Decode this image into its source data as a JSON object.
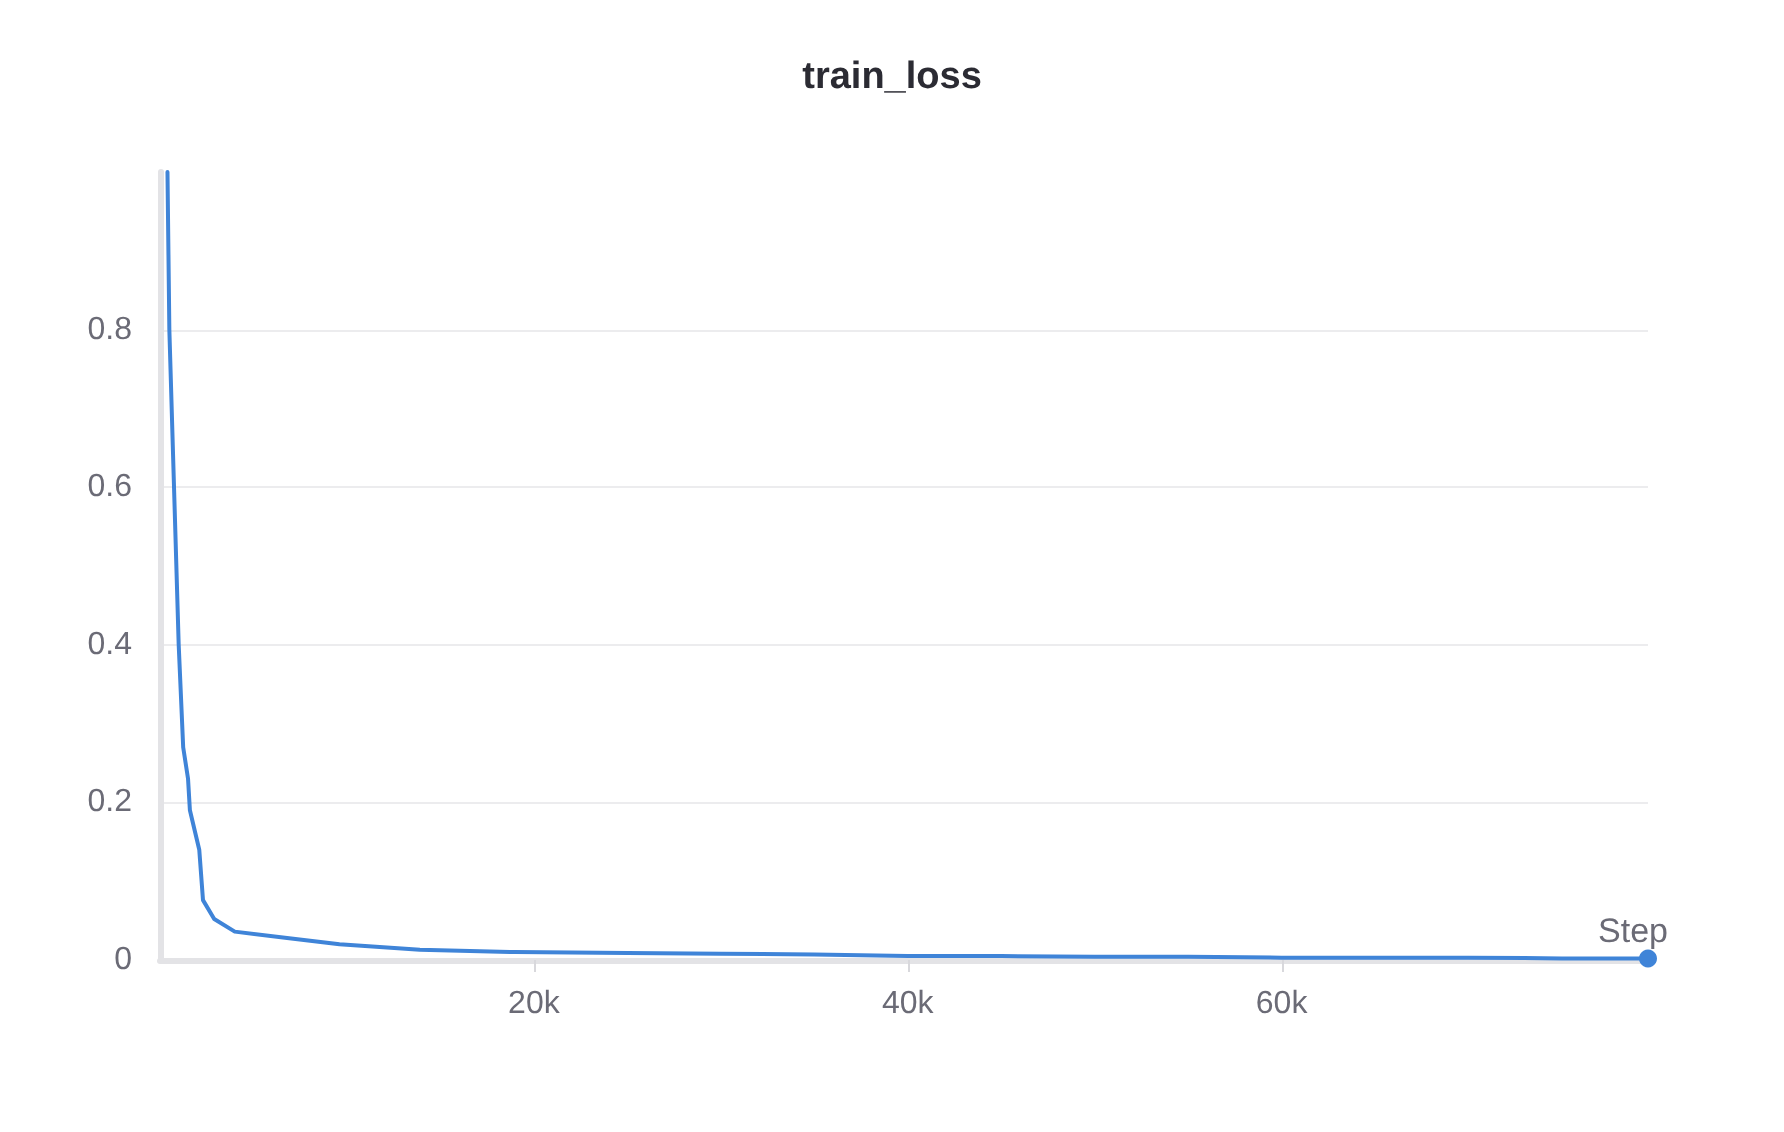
{
  "chart_data": {
    "type": "line",
    "title": "train_loss",
    "xlabel": "Step",
    "x": [
      400,
      500,
      750,
      1000,
      1240,
      1500,
      1600,
      2100,
      2300,
      2900,
      4000,
      6800,
      9600,
      13900,
      19000,
      25000,
      30000,
      35000,
      40000,
      45000,
      50000,
      55000,
      60000,
      65000,
      70000,
      75000,
      79600
    ],
    "series": [
      {
        "color": "#3f84d8",
        "values": [
          1.0,
          0.8,
          0.6,
          0.4,
          0.27,
          0.23,
          0.19,
          0.14,
          0.076,
          0.052,
          0.036,
          0.028,
          0.02,
          0.013,
          0.01,
          0.009,
          0.008,
          0.007,
          0.005,
          0.005,
          0.004,
          0.004,
          0.003,
          0.003,
          0.003,
          0.002,
          0.002
        ]
      }
    ],
    "xlim": [
      0,
      79600
    ],
    "ylim": [
      0,
      1
    ],
    "xticks": [
      {
        "value": 20000,
        "label": "20k"
      },
      {
        "value": 40000,
        "label": "40k"
      },
      {
        "value": 60000,
        "label": "60k"
      }
    ],
    "yticks": [
      0,
      0.2,
      0.4,
      0.6,
      0.8
    ],
    "grid": "y",
    "marker": "none",
    "line_style": "solid"
  }
}
